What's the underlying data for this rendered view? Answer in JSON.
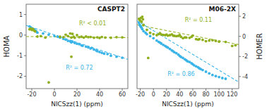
{
  "chart_data": [
    {
      "type": "scatter",
      "title": "CASPT2",
      "x_label": "NICSzz(1) (ppm)",
      "y_label": "HOMA",
      "xlim": [
        -25,
        65
      ],
      "ylim": [
        -2.6,
        1.5
      ],
      "xticks": [
        -20,
        0,
        20,
        40,
        60
      ],
      "yticks": [
        -2,
        -1,
        0,
        1
      ],
      "series": [
        {
          "type": "scatter",
          "color": "#3ab4e8",
          "x": [
            -22,
            -21,
            -20,
            -19,
            -18,
            -17,
            -16,
            -15,
            -10,
            -5,
            0,
            3,
            5,
            8,
            10,
            12,
            14,
            15,
            16,
            18,
            20,
            22,
            24,
            25,
            28,
            30,
            32,
            33,
            35,
            37,
            38,
            40,
            42,
            44,
            47,
            50,
            55,
            60
          ],
          "values": [
            0.42,
            0.38,
            0.32,
            0.3,
            0.28,
            0.22,
            0.18,
            0.12,
            0.08,
            0.02,
            -0.04,
            -0.08,
            -0.12,
            -0.18,
            -0.22,
            -0.28,
            -0.3,
            -0.35,
            -0.32,
            -0.38,
            -0.42,
            -0.44,
            -0.5,
            -0.52,
            -0.56,
            -0.6,
            -0.65,
            -0.62,
            -0.7,
            -0.75,
            -0.78,
            -0.82,
            -0.86,
            -0.9,
            -0.92,
            -1.0,
            -1.05,
            -1.1
          ]
        },
        {
          "type": "scatter",
          "color": "#8faf1e",
          "x": [
            -22,
            -21,
            -20,
            -19,
            -18,
            -17,
            -15,
            -12,
            -8,
            5,
            8,
            10,
            12,
            14,
            15,
            16,
            17,
            18,
            20,
            22,
            24,
            26,
            28,
            30,
            32,
            35,
            38,
            40,
            42,
            45,
            50,
            55,
            60,
            -5,
            15
          ],
          "values": [
            0.28,
            0.32,
            0.25,
            0.3,
            0.22,
            0.18,
            -0.07,
            -0.05,
            -0.12,
            -0.08,
            -0.1,
            0.02,
            -0.05,
            0.08,
            -0.12,
            0.06,
            -0.08,
            -0.13,
            0.0,
            -0.1,
            -0.08,
            -0.12,
            -0.07,
            -0.1,
            -0.09,
            -0.13,
            -0.11,
            -0.14,
            -0.09,
            -0.12,
            -0.13,
            -0.1,
            -0.11,
            -2.3,
            -1.05
          ]
        },
        {
          "type": "line",
          "line_style": "dashed",
          "color": "#8faf1e",
          "x": [
            -25,
            65
          ],
          "values": [
            -0.07,
            -0.12
          ]
        },
        {
          "type": "line",
          "line_style": "dashed",
          "color": "#3ab4e8",
          "x": [
            -25,
            65
          ],
          "values": [
            0.47,
            -1.18
          ]
        }
      ],
      "annotations": [
        {
          "text": "R² < 0.01",
          "color": "#8faf1e"
        },
        {
          "text": "R² = 0.72",
          "color": "#3ab4e8"
        }
      ]
    },
    {
      "type": "scatter",
      "title": "M06-2X",
      "x_label": "NICSzz(1) (ppm)",
      "y2_label": "HOMER",
      "xlim": [
        -25,
        130
      ],
      "y2lim": [
        -5.2,
        3.2
      ],
      "xticks": [
        -20,
        0,
        20,
        40,
        60,
        80,
        100,
        120
      ],
      "y2ticks": [
        -4,
        -2,
        0,
        2
      ],
      "series": [
        {
          "type": "scatter",
          "axis": "y2",
          "color": "#3ab4e8",
          "x": [
            -22,
            -21,
            -20,
            -19,
            -18,
            -17,
            -15,
            -12,
            -10,
            -5,
            0,
            5,
            8,
            10,
            12,
            15,
            18,
            20,
            22,
            25,
            28,
            30,
            32,
            35,
            38,
            40,
            42,
            45,
            48,
            50,
            52,
            55,
            58,
            60,
            62,
            65,
            68,
            70,
            72,
            75,
            80,
            85,
            90,
            95,
            100,
            105,
            110
          ],
          "values": [
            1.35,
            1.15,
            1.05,
            0.95,
            0.85,
            0.72,
            0.52,
            0.35,
            0.22,
            0.02,
            -0.18,
            -0.42,
            -0.55,
            -0.62,
            -0.72,
            -0.85,
            -0.95,
            -1.05,
            -1.12,
            -1.25,
            -1.4,
            -1.48,
            -1.58,
            -1.68,
            -1.82,
            -1.95,
            -2.05,
            -2.15,
            -2.28,
            -2.38,
            -2.48,
            -2.55,
            -2.68,
            -2.78,
            -2.88,
            -2.98,
            -3.08,
            -3.18,
            -3.25,
            -3.35,
            -3.52,
            -3.68,
            -3.85,
            -3.95,
            -4.05,
            -4.15,
            -4.22
          ]
        },
        {
          "type": "scatter",
          "axis": "y2",
          "color": "#8faf1e",
          "x": [
            -22,
            -21,
            -20,
            -19,
            -18,
            -17,
            -16,
            -15,
            -10,
            -5,
            0,
            5,
            8,
            10,
            12,
            15,
            18,
            20,
            22,
            25,
            28,
            30,
            32,
            35,
            38,
            40,
            42,
            45,
            48,
            50,
            55,
            58,
            60,
            65,
            68,
            70,
            75,
            80,
            85,
            90,
            95,
            100,
            110,
            120,
            125,
            -8
          ],
          "values": [
            1.75,
            1.65,
            1.55,
            1.85,
            1.45,
            1.95,
            1.7,
            1.15,
            0.65,
            0.35,
            0.22,
            0.12,
            0.22,
            0.32,
            0.18,
            0.15,
            0.12,
            0.18,
            0.08,
            0.12,
            0.2,
            0.07,
            0.05,
            0.02,
            0.05,
            0.12,
            -0.05,
            -0.18,
            -0.1,
            -0.12,
            -0.15,
            -0.05,
            0.08,
            -0.28,
            -0.32,
            -0.28,
            -0.35,
            -0.48,
            -0.42,
            -0.38,
            -0.45,
            -0.52,
            -0.55,
            -0.95,
            -0.88,
            -2.15
          ]
        },
        {
          "type": "line",
          "axis": "y2",
          "line_style": "dashed",
          "color": "#8faf1e",
          "x": [
            -25,
            130
          ],
          "values": [
            1.15,
            -0.82
          ]
        },
        {
          "type": "line",
          "axis": "y2",
          "line_style": "dashed",
          "color": "#3ab4e8",
          "x": [
            -25,
            130
          ],
          "values": [
            1.55,
            -4.55
          ]
        }
      ],
      "annotations": [
        {
          "text": "R² = 0.11",
          "color": "#8faf1e"
        },
        {
          "text": "R² = 0.86",
          "color": "#3ab4e8"
        }
      ]
    }
  ]
}
